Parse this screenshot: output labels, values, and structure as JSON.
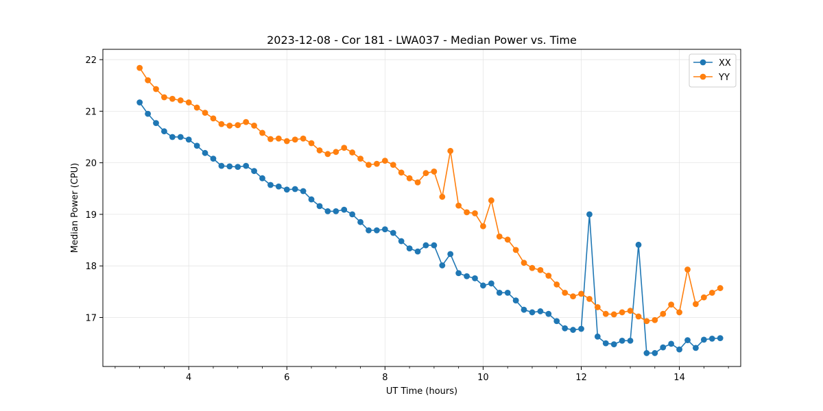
{
  "chart_data": {
    "type": "line",
    "title": "2023-12-08 - Cor 181 - LWA037 - Median Power vs. Time",
    "xlabel": "UT Time (hours)",
    "ylabel": "Median Power (CPU)",
    "xlim": [
      2.25,
      15.25
    ],
    "ylim": [
      16.05,
      22.2
    ],
    "xticks": [
      4,
      6,
      8,
      10,
      12,
      14
    ],
    "xtick_labels": [
      "4",
      "6",
      "8",
      "10",
      "12",
      "14"
    ],
    "xminor_step": 0.5,
    "yticks": [
      17,
      18,
      19,
      20,
      21,
      22
    ],
    "ytick_labels": [
      "17",
      "18",
      "19",
      "20",
      "21",
      "22"
    ],
    "grid": true,
    "legend_position": "top-right",
    "x": [
      3.0,
      3.167,
      3.333,
      3.5,
      3.667,
      3.833,
      4.0,
      4.167,
      4.333,
      4.5,
      4.667,
      4.833,
      5.0,
      5.167,
      5.333,
      5.5,
      5.667,
      5.833,
      6.0,
      6.167,
      6.333,
      6.5,
      6.667,
      6.833,
      7.0,
      7.167,
      7.333,
      7.5,
      7.667,
      7.833,
      8.0,
      8.167,
      8.333,
      8.5,
      8.667,
      8.833,
      9.0,
      9.167,
      9.333,
      9.5,
      9.667,
      9.833,
      10.0,
      10.167,
      10.333,
      10.5,
      10.667,
      10.833,
      11.0,
      11.167,
      11.333,
      11.5,
      11.667,
      11.833,
      12.0,
      12.167,
      12.333,
      12.5,
      12.667,
      12.833,
      13.0,
      13.167,
      13.333,
      13.5,
      13.667,
      13.833,
      14.0,
      14.167,
      14.333,
      14.5,
      14.667,
      14.833
    ],
    "series": [
      {
        "name": "XX",
        "color": "#1f77b4",
        "values": [
          21.17,
          20.95,
          20.77,
          20.61,
          20.5,
          20.5,
          20.45,
          20.33,
          20.19,
          20.08,
          19.94,
          19.93,
          19.92,
          19.94,
          19.84,
          19.7,
          19.57,
          19.54,
          19.48,
          19.49,
          19.45,
          19.29,
          19.16,
          19.06,
          19.06,
          19.09,
          19.0,
          18.85,
          18.69,
          18.69,
          18.71,
          18.64,
          18.48,
          18.34,
          18.28,
          18.4,
          18.4,
          18.01,
          18.23,
          17.86,
          17.8,
          17.76,
          17.62,
          17.66,
          17.48,
          17.48,
          17.33,
          17.15,
          17.1,
          17.12,
          17.07,
          16.93,
          16.79,
          16.76,
          16.78,
          19.0,
          16.63,
          16.5,
          16.48,
          16.55,
          16.55,
          18.41,
          16.31,
          16.31,
          16.42,
          16.49,
          16.38,
          16.56,
          16.41,
          16.57,
          16.59,
          16.6
        ]
      },
      {
        "name": "YY",
        "color": "#ff7f0e",
        "values": [
          21.84,
          21.6,
          21.43,
          21.27,
          21.24,
          21.21,
          21.17,
          21.07,
          20.97,
          20.86,
          20.75,
          20.72,
          20.73,
          20.79,
          20.72,
          20.58,
          20.46,
          20.47,
          20.42,
          20.45,
          20.47,
          20.38,
          20.24,
          20.17,
          20.21,
          20.29,
          20.2,
          20.08,
          19.96,
          19.98,
          20.04,
          19.96,
          19.81,
          19.7,
          19.62,
          19.8,
          19.83,
          19.34,
          20.23,
          19.17,
          19.04,
          19.02,
          18.77,
          19.27,
          18.57,
          18.51,
          18.31,
          18.06,
          17.96,
          17.92,
          17.81,
          17.64,
          17.48,
          17.41,
          17.46,
          17.36,
          17.2,
          17.07,
          17.06,
          17.1,
          17.13,
          17.02,
          16.93,
          16.95,
          17.07,
          17.25,
          17.1,
          17.93,
          17.26,
          17.39,
          17.48,
          17.57
        ]
      }
    ]
  }
}
